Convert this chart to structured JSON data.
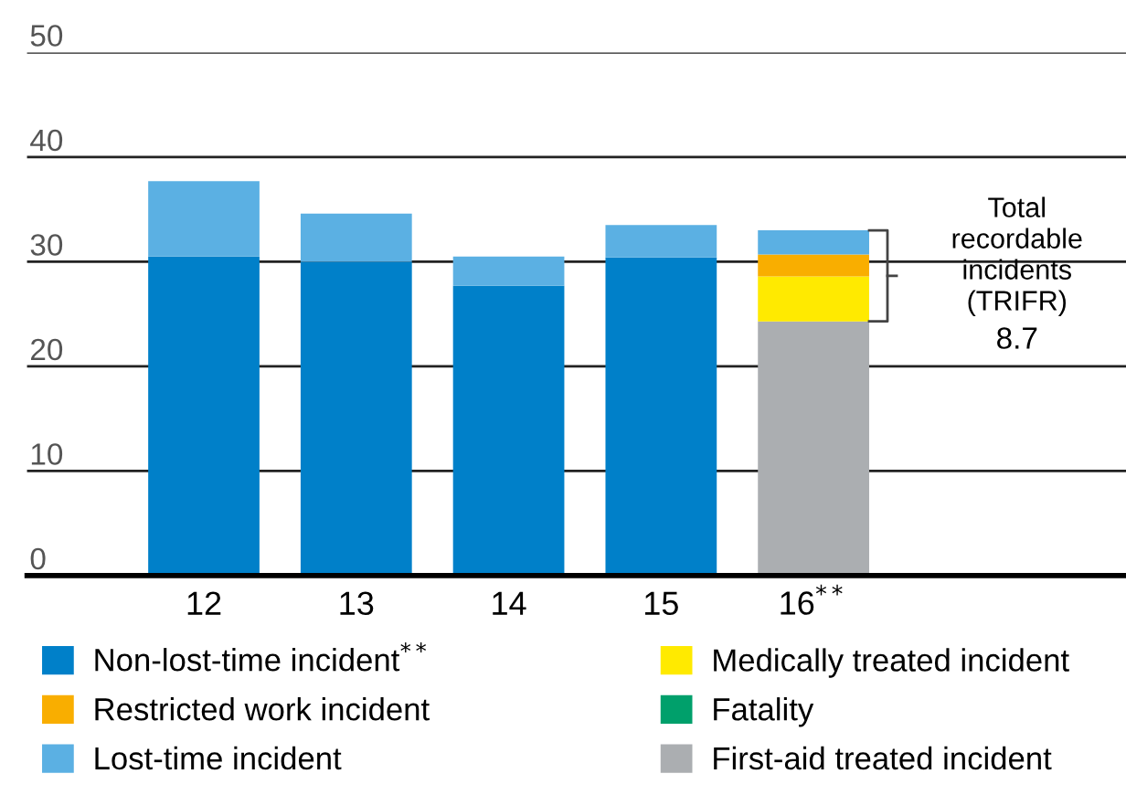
{
  "chart_data": {
    "type": "bar",
    "stacked": true,
    "categories": [
      "12",
      "13",
      "14",
      "15",
      "16$^{**}$"
    ],
    "series": [
      {
        "name": "Non-lost-time incident$^{**}$",
        "color": "#0080c9",
        "values": [
          30.5,
          30.0,
          27.7,
          30.4,
          null
        ]
      },
      {
        "name": "First-aid treated incident",
        "color": "#abaeb1",
        "values": [
          null,
          null,
          null,
          null,
          24.3
        ]
      },
      {
        "name": "Medically treated incident",
        "color": "#ffea00",
        "values": [
          null,
          null,
          null,
          null,
          4.3
        ]
      },
      {
        "name": "Restricted work incident",
        "color": "#f9ae00",
        "values": [
          null,
          null,
          null,
          null,
          2.1
        ]
      },
      {
        "name": "Lost-time incident",
        "color": "#5bb0e3",
        "values": [
          7.2,
          4.6,
          2.8,
          3.1,
          2.3
        ]
      },
      {
        "name": "Fatality",
        "color": "#00a06b",
        "values": [
          null,
          null,
          null,
          null,
          null
        ]
      }
    ],
    "ylim": [
      0,
      50
    ],
    "yticks": [
      0,
      10,
      20,
      30,
      40,
      50
    ],
    "grid": "y",
    "legend": "bottom",
    "annotations": [
      "Total\nrecordable\nincidents\n(TRIFR)",
      "8.7"
    ]
  }
}
